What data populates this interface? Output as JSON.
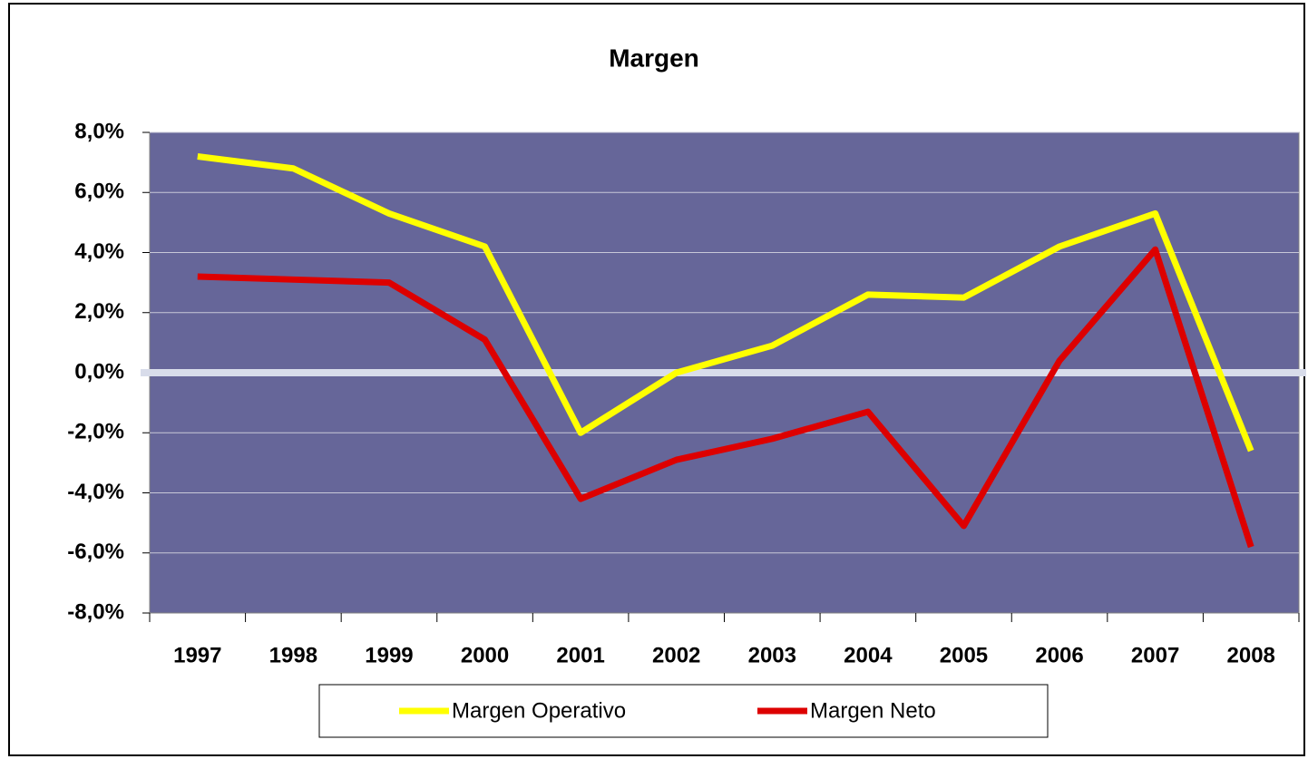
{
  "chart_data": {
    "type": "line",
    "title": "Margen",
    "categories": [
      "1997",
      "1998",
      "1999",
      "2000",
      "2001",
      "2002",
      "2003",
      "2004",
      "2005",
      "2006",
      "2007",
      "2008"
    ],
    "series": [
      {
        "name": "Margen Operativo",
        "color": "#ffff00",
        "values": [
          7.2,
          6.8,
          5.3,
          4.2,
          -2.0,
          0.0,
          0.9,
          2.6,
          2.5,
          4.2,
          5.3,
          -2.6
        ]
      },
      {
        "name": "Margen Neto",
        "color": "#dd0000",
        "values": [
          3.2,
          3.1,
          3.0,
          1.1,
          -4.2,
          -2.9,
          -2.2,
          -1.3,
          -5.1,
          0.4,
          4.1,
          -5.8
        ]
      }
    ],
    "ylim": [
      -8,
      8
    ],
    "yticks": [
      {
        "value": -8,
        "label": "-8,0%"
      },
      {
        "value": -6,
        "label": "-6,0%"
      },
      {
        "value": -4,
        "label": "-4,0%"
      },
      {
        "value": -2,
        "label": "-2,0%"
      },
      {
        "value": 0,
        "label": "0,0%"
      },
      {
        "value": 2,
        "label": "2,0%"
      },
      {
        "value": 4,
        "label": "4,0%"
      },
      {
        "value": 6,
        "label": "6,0%"
      },
      {
        "value": 8,
        "label": "8,0%"
      }
    ],
    "grid": true,
    "background": "#666699"
  }
}
